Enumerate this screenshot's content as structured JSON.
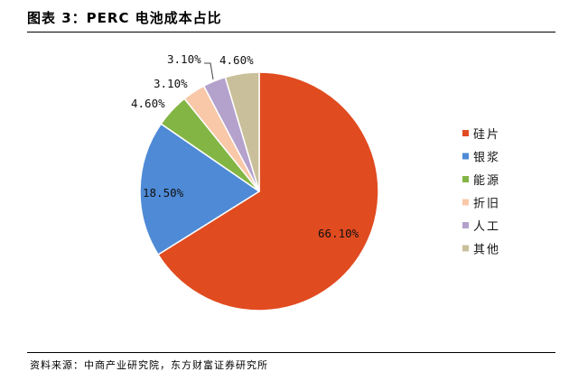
{
  "title": "图表 3：PERC 电池成本占比",
  "source": "资料来源：中商产业研究院，东方财富证券研究所",
  "chart_data": {
    "type": "pie",
    "title": "",
    "slices": [
      {
        "label": "硅片",
        "value": 66.1,
        "display": "66.10%",
        "color": "#E14B20"
      },
      {
        "label": "银浆",
        "value": 18.5,
        "display": "18.50%",
        "color": "#4E8AD6"
      },
      {
        "label": "能源",
        "value": 4.6,
        "display": "4.60%",
        "color": "#83B544"
      },
      {
        "label": "折旧",
        "value": 3.1,
        "display": "3.10%",
        "color": "#F8C8A8"
      },
      {
        "label": "人工",
        "value": 3.1,
        "display": "3.10%",
        "color": "#B4A2CC"
      },
      {
        "label": "其他",
        "value": 4.6,
        "display": "4.60%",
        "color": "#C9C09B"
      }
    ],
    "legend_position": "right"
  }
}
